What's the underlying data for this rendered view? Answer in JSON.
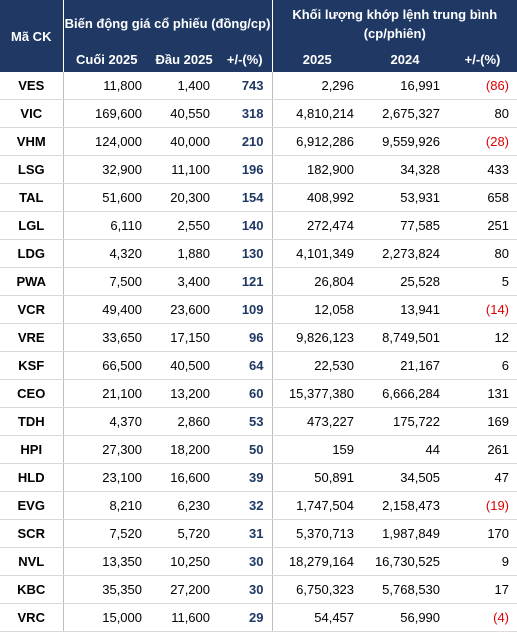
{
  "table": {
    "header": {
      "code": "Mã CK",
      "price_group": "Biến động giá cổ phiếu (đồng/cp)",
      "volume_group": "Khối lượng khớp lệnh trung bình (cp/phiên)",
      "columns": [
        "Cuối 2025",
        "Đầu 2025",
        "+/-(%)",
        "2025",
        "2024",
        "+/-(%)"
      ]
    },
    "rows": [
      [
        "VES",
        "11,800",
        "1,400",
        "743",
        "2,296",
        "16,991",
        "(86)"
      ],
      [
        "VIC",
        "169,600",
        "40,550",
        "318",
        "4,810,214",
        "2,675,327",
        "80"
      ],
      [
        "VHM",
        "124,000",
        "40,000",
        "210",
        "6,912,286",
        "9,559,926",
        "(28)"
      ],
      [
        "LSG",
        "32,900",
        "11,100",
        "196",
        "182,900",
        "34,328",
        "433"
      ],
      [
        "TAL",
        "51,600",
        "20,300",
        "154",
        "408,992",
        "53,931",
        "658"
      ],
      [
        "LGL",
        "6,110",
        "2,550",
        "140",
        "272,474",
        "77,585",
        "251"
      ],
      [
        "LDG",
        "4,320",
        "1,880",
        "130",
        "4,101,349",
        "2,273,824",
        "80"
      ],
      [
        "PWA",
        "7,500",
        "3,400",
        "121",
        "26,804",
        "25,528",
        "5"
      ],
      [
        "VCR",
        "49,400",
        "23,600",
        "109",
        "12,058",
        "13,941",
        "(14)"
      ],
      [
        "VRE",
        "33,650",
        "17,150",
        "96",
        "9,826,123",
        "8,749,501",
        "12"
      ],
      [
        "KSF",
        "66,500",
        "40,500",
        "64",
        "22,530",
        "21,167",
        "6"
      ],
      [
        "CEO",
        "21,100",
        "13,200",
        "60",
        "15,377,380",
        "6,666,284",
        "131"
      ],
      [
        "TDH",
        "4,370",
        "2,860",
        "53",
        "473,227",
        "175,722",
        "169"
      ],
      [
        "HPI",
        "27,300",
        "18,200",
        "50",
        "159",
        "44",
        "261"
      ],
      [
        "HLD",
        "23,100",
        "16,600",
        "39",
        "50,891",
        "34,505",
        "47"
      ],
      [
        "EVG",
        "8,210",
        "6,230",
        "32",
        "1,747,504",
        "2,158,473",
        "(19)"
      ],
      [
        "SCR",
        "7,520",
        "5,720",
        "31",
        "5,370,713",
        "1,987,849",
        "170"
      ],
      [
        "NVL",
        "13,350",
        "10,250",
        "30",
        "18,279,164",
        "16,730,525",
        "9"
      ],
      [
        "KBC",
        "35,350",
        "27,200",
        "30",
        "6,750,323",
        "5,768,530",
        "17"
      ],
      [
        "VRC",
        "15,000",
        "11,600",
        "29",
        "54,457",
        "56,990",
        "(4)"
      ]
    ]
  }
}
